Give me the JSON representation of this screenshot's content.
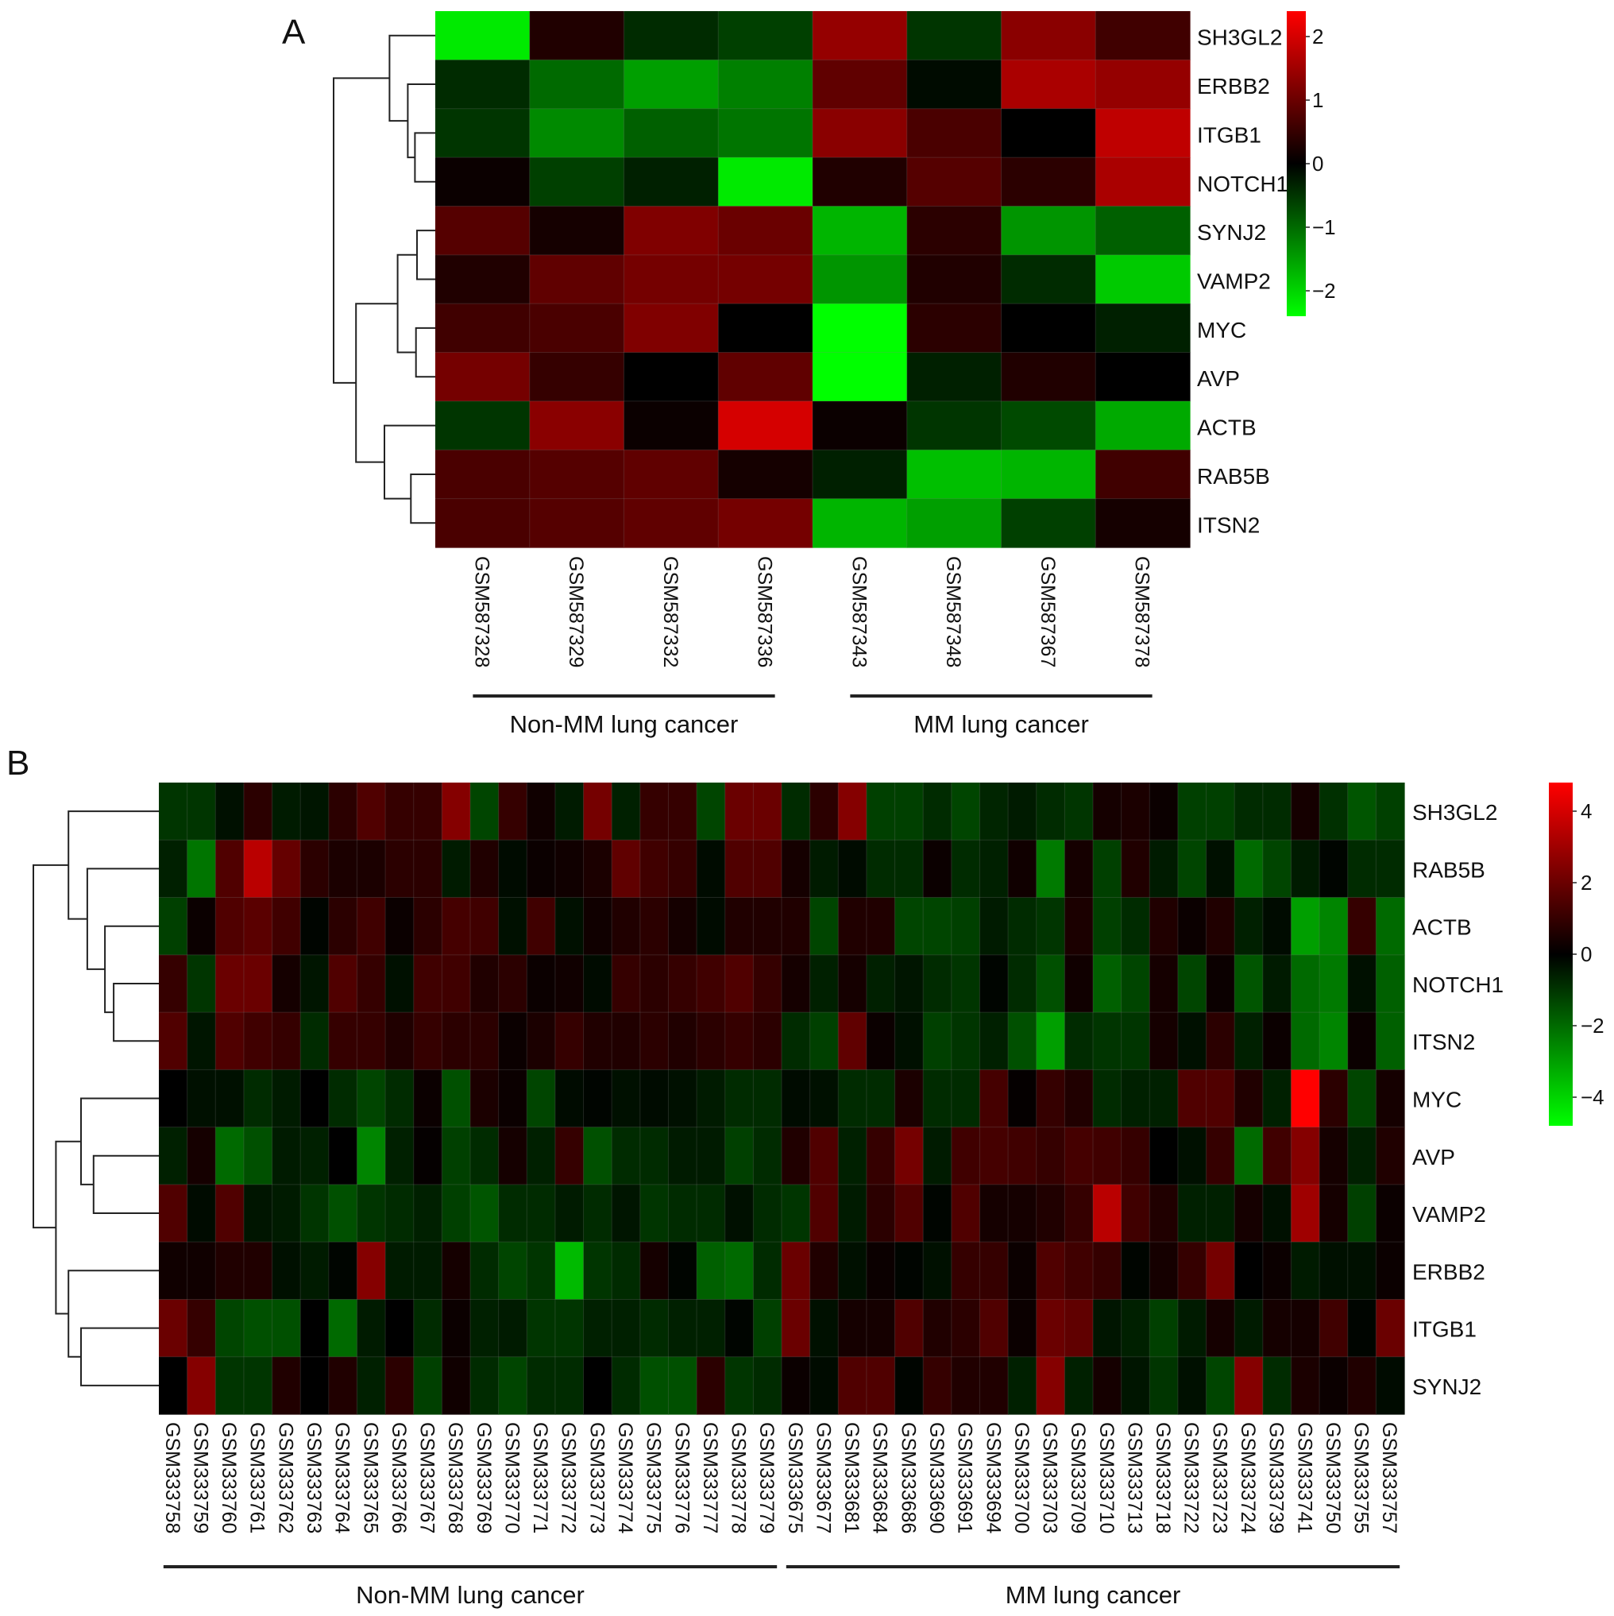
{
  "chart_data": [
    {
      "type": "heatmap",
      "panel_label": "A",
      "rows": [
        "SH3GL2",
        "ERBB2",
        "ITGB1",
        "NOTCH1",
        "SYNJ2",
        "VAMP2",
        "MYC",
        "AVP",
        "ACTB",
        "RAB5B",
        "ITSN2"
      ],
      "columns": [
        "GSM587328",
        "GSM587329",
        "GSM587332",
        "GSM587336",
        "GSM587343",
        "GSM587348",
        "GSM587367",
        "GSM587378"
      ],
      "groups": [
        {
          "name": "Non-MM lung cancer",
          "columns": [
            0,
            1,
            2,
            3
          ]
        },
        {
          "name": "MM lung cancer",
          "columns": [
            4,
            5,
            6,
            7
          ]
        }
      ],
      "values": [
        [
          -2.2,
          0.3,
          -0.4,
          -0.6,
          1.4,
          -0.5,
          1.3,
          0.6
        ],
        [
          -0.4,
          -1.0,
          -1.5,
          -1.2,
          0.9,
          -0.1,
          1.6,
          1.4
        ],
        [
          -0.5,
          -1.3,
          -0.9,
          -1.1,
          1.3,
          0.7,
          0.0,
          1.8
        ],
        [
          0.1,
          -0.6,
          -0.3,
          -2.2,
          0.3,
          0.8,
          0.4,
          1.6
        ],
        [
          0.8,
          0.2,
          1.2,
          1.0,
          -1.7,
          0.4,
          -1.4,
          -0.9
        ],
        [
          0.3,
          0.9,
          1.1,
          1.1,
          -1.4,
          0.3,
          -0.4,
          -1.9
        ],
        [
          0.6,
          0.7,
          1.2,
          0.0,
          -2.4,
          0.4,
          0.0,
          -0.3
        ],
        [
          1.1,
          0.5,
          0.0,
          0.9,
          -2.4,
          -0.3,
          0.3,
          0.0
        ],
        [
          -0.5,
          1.3,
          0.1,
          2.0,
          0.1,
          -0.5,
          -0.7,
          -1.6
        ],
        [
          0.7,
          0.8,
          0.9,
          0.2,
          -0.3,
          -1.8,
          -1.7,
          0.6
        ],
        [
          0.7,
          0.8,
          0.9,
          1.1,
          -1.7,
          -1.5,
          -0.6,
          0.2
        ]
      ],
      "color_scale": {
        "low": "#00ff00",
        "mid": "#000000",
        "high": "#ff0000",
        "min": -2.4,
        "max": 2.4
      },
      "colorbar_ticks": [
        2,
        1,
        0,
        -1,
        -2
      ],
      "row_dendrogram": true
    },
    {
      "type": "heatmap",
      "panel_label": "B",
      "rows": [
        "SH3GL2",
        "RAB5B",
        "ACTB",
        "NOTCH1",
        "ITSN2",
        "MYC",
        "AVP",
        "VAMP2",
        "ERBB2",
        "ITGB1",
        "SYNJ2"
      ],
      "columns": [
        "GSM333758",
        "GSM333759",
        "GSM333760",
        "GSM333761",
        "GSM333762",
        "GSM333763",
        "GSM333764",
        "GSM333765",
        "GSM333766",
        "GSM333767",
        "GSM333768",
        "GSM333769",
        "GSM333770",
        "GSM333771",
        "GSM333772",
        "GSM333773",
        "GSM333774",
        "GSM333775",
        "GSM333776",
        "GSM333777",
        "GSM333778",
        "GSM333779",
        "GSM333675",
        "GSM333677",
        "GSM333681",
        "GSM333684",
        "GSM333686",
        "GSM333690",
        "GSM333691",
        "GSM333694",
        "GSM333700",
        "GSM333703",
        "GSM333709",
        "GSM333710",
        "GSM333713",
        "GSM333718",
        "GSM333722",
        "GSM333723",
        "GSM333724",
        "GSM333739",
        "GSM333741",
        "GSM333750",
        "GSM333755",
        "GSM333757"
      ],
      "groups": [
        {
          "name": "Non-MM lung cancer",
          "columns": [
            0,
            21
          ]
        },
        {
          "name": "MM lung cancer",
          "columns": [
            22,
            43
          ]
        }
      ],
      "values": [
        [
          -1.0,
          -1.0,
          -0.3,
          0.8,
          -0.5,
          -0.4,
          0.8,
          1.5,
          1.0,
          1.0,
          2.5,
          -1.3,
          1.0,
          0.3,
          -0.5,
          2.2,
          -0.6,
          1.0,
          1.0,
          -1.3,
          2.0,
          2.0,
          -0.8,
          0.8,
          2.5,
          -1.2,
          -1.2,
          -0.8,
          -1.3,
          -0.7,
          -0.5,
          -0.8,
          -1.0,
          0.4,
          0.5,
          0.2,
          -1.2,
          -1.2,
          -0.8,
          -0.8,
          0.4,
          -0.9,
          -1.6,
          -1.2
        ],
        [
          -0.6,
          -2.2,
          1.5,
          3.5,
          1.9,
          0.8,
          0.5,
          0.5,
          0.8,
          0.8,
          -0.5,
          0.6,
          -0.2,
          0.2,
          0.3,
          0.5,
          1.8,
          1.2,
          1.0,
          -0.2,
          1.5,
          1.5,
          0.4,
          -0.5,
          -0.2,
          -0.8,
          -0.8,
          0.2,
          -0.8,
          -0.6,
          0.3,
          -2.3,
          0.4,
          -1.2,
          0.6,
          -0.5,
          -1.3,
          -0.3,
          -2.0,
          -1.3,
          -0.5,
          -0.1,
          -0.8,
          -0.8
        ],
        [
          -1.2,
          0.2,
          1.5,
          1.7,
          1.2,
          -0.1,
          0.8,
          1.2,
          0.2,
          0.8,
          1.3,
          1.2,
          -0.3,
          1.2,
          -0.3,
          0.3,
          0.6,
          0.8,
          0.4,
          -0.2,
          0.6,
          0.6,
          0.6,
          -1.3,
          0.6,
          0.6,
          -1.3,
          -1.3,
          -1.2,
          -0.5,
          -0.8,
          -1.0,
          0.5,
          -1.2,
          -0.8,
          0.6,
          0.2,
          0.6,
          -0.6,
          -0.2,
          -3.0,
          -2.5,
          1.0,
          -2.0
        ],
        [
          1.0,
          -1.0,
          2.0,
          2.0,
          0.4,
          -0.4,
          1.5,
          1.0,
          -0.3,
          1.2,
          1.2,
          0.6,
          0.8,
          0.2,
          0.3,
          -0.2,
          1.0,
          0.8,
          1.0,
          1.2,
          1.5,
          1.0,
          0.4,
          -0.6,
          0.4,
          -0.6,
          -0.4,
          -0.8,
          -1.0,
          -0.1,
          -0.8,
          -1.5,
          0.3,
          -1.8,
          -1.3,
          0.4,
          -1.3,
          0.2,
          -1.6,
          -0.5,
          -2.0,
          -2.3,
          -0.3,
          -1.8
        ],
        [
          1.5,
          -0.4,
          1.5,
          1.2,
          1.0,
          -0.8,
          1.0,
          1.0,
          0.6,
          1.0,
          0.8,
          0.8,
          0.2,
          0.5,
          1.0,
          0.6,
          0.6,
          0.8,
          0.6,
          0.8,
          1.0,
          0.8,
          -0.8,
          -1.2,
          1.8,
          0.2,
          -0.3,
          -1.2,
          -1.0,
          -0.6,
          -1.5,
          -3.0,
          -0.8,
          -1.0,
          -1.0,
          0.4,
          -0.3,
          0.8,
          -0.6,
          0.2,
          -2.0,
          -2.5,
          0.2,
          -1.8
        ],
        [
          0.0,
          -0.3,
          -0.3,
          -0.8,
          -0.5,
          0.0,
          -0.8,
          -1.3,
          -0.8,
          0.2,
          -1.5,
          0.5,
          0.2,
          -1.3,
          -0.2,
          -0.1,
          -0.3,
          -0.2,
          -0.3,
          -0.5,
          -0.8,
          -0.8,
          -0.2,
          -0.3,
          -0.8,
          -0.8,
          0.5,
          -0.8,
          -0.8,
          1.3,
          0.1,
          1.0,
          0.6,
          -0.8,
          -0.6,
          -0.6,
          1.5,
          1.5,
          0.6,
          -0.6,
          4.8,
          0.8,
          -1.3,
          0.4
        ],
        [
          -0.6,
          0.4,
          -2.0,
          -1.5,
          -0.5,
          -0.6,
          0.0,
          -2.5,
          -0.6,
          0.1,
          -1.2,
          -0.8,
          0.4,
          -0.6,
          1.0,
          -1.5,
          -0.8,
          -0.8,
          -0.5,
          -0.5,
          -1.2,
          -0.8,
          0.6,
          1.5,
          -0.6,
          1.0,
          2.2,
          -0.5,
          1.2,
          1.3,
          1.2,
          1.0,
          1.3,
          1.2,
          1.0,
          0.0,
          -0.3,
          1.0,
          -2.0,
          1.2,
          2.5,
          0.4,
          -0.6,
          0.6
        ],
        [
          1.5,
          -0.2,
          1.5,
          -0.4,
          -0.5,
          -1.0,
          -1.5,
          -1.0,
          -0.8,
          -0.6,
          -1.2,
          -1.6,
          -0.8,
          -0.8,
          -0.5,
          -0.8,
          -0.4,
          -1.0,
          -0.8,
          -0.8,
          -0.3,
          -0.8,
          -1.0,
          1.5,
          -0.5,
          0.8,
          1.5,
          -0.1,
          1.5,
          0.4,
          0.4,
          0.6,
          1.0,
          3.5,
          1.2,
          0.6,
          -0.6,
          -0.6,
          0.4,
          -0.3,
          3.0,
          0.4,
          -1.2,
          0.2
        ],
        [
          0.3,
          0.3,
          0.6,
          0.6,
          -0.3,
          -0.5,
          -0.1,
          2.5,
          -0.5,
          -0.5,
          0.4,
          -0.8,
          -1.3,
          -1.0,
          -3.5,
          -1.0,
          -0.8,
          0.4,
          -0.1,
          -1.8,
          -2.0,
          -0.8,
          2.0,
          0.6,
          -0.3,
          0.2,
          -0.1,
          -0.3,
          1.0,
          1.0,
          0.2,
          1.5,
          1.2,
          1.0,
          -0.1,
          0.4,
          1.0,
          2.2,
          0.0,
          0.2,
          -0.5,
          -0.3,
          -0.3,
          0.2
        ],
        [
          2.0,
          1.0,
          -1.3,
          -1.5,
          -1.5,
          0.0,
          -2.0,
          -0.5,
          0.0,
          -0.8,
          0.2,
          -0.6,
          -0.5,
          -1.0,
          -1.0,
          -0.6,
          -0.6,
          -0.8,
          -0.6,
          -0.6,
          -0.1,
          -1.2,
          2.0,
          -0.3,
          0.4,
          0.4,
          1.5,
          0.6,
          0.8,
          1.5,
          0.2,
          2.0,
          1.8,
          -0.4,
          -0.6,
          -1.2,
          -0.5,
          0.4,
          -0.5,
          0.4,
          0.4,
          1.2,
          -0.1,
          2.0
        ],
        [
          0.0,
          2.5,
          -1.0,
          -1.0,
          0.6,
          0.0,
          0.6,
          -0.6,
          0.8,
          -1.2,
          0.3,
          -0.8,
          -1.3,
          -0.8,
          -0.8,
          0.0,
          -0.8,
          -1.5,
          -1.5,
          0.8,
          -1.0,
          -0.8,
          0.2,
          -0.2,
          1.5,
          1.5,
          -0.1,
          1.0,
          0.6,
          0.6,
          -0.6,
          2.5,
          -0.6,
          0.4,
          -0.4,
          -1.0,
          -0.3,
          -1.3,
          2.5,
          -0.8,
          0.5,
          0.2,
          0.6,
          -0.2
        ]
      ],
      "color_scale": {
        "low": "#00ff00",
        "mid": "#000000",
        "high": "#ff0000",
        "min": -4.8,
        "max": 4.8
      },
      "colorbar_ticks": [
        4,
        2,
        0,
        -2,
        -4
      ],
      "row_dendrogram": true
    }
  ]
}
